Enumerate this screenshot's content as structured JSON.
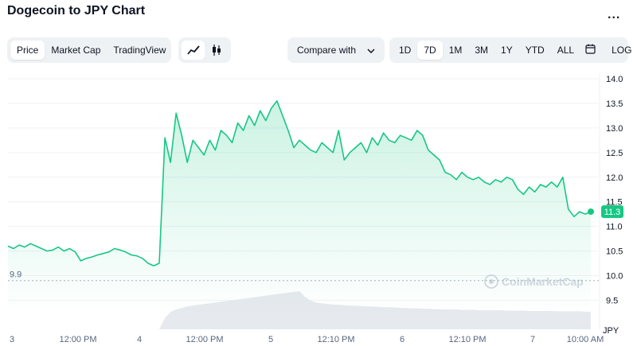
{
  "header": {
    "title": "Dogecoin to JPY Chart",
    "more_label": "..."
  },
  "tabs": [
    {
      "label": "Price",
      "active": true
    },
    {
      "label": "Market Cap",
      "active": false
    },
    {
      "label": "TradingView",
      "active": false
    }
  ],
  "chart_toggles": [
    {
      "icon": "line-chart-icon",
      "active": true
    },
    {
      "icon": "candlestick-icon",
      "active": false
    }
  ],
  "compare": {
    "label": "Compare with",
    "icon": "chevron-down-icon"
  },
  "ranges": [
    {
      "label": "1D",
      "active": false
    },
    {
      "label": "7D",
      "active": true
    },
    {
      "label": "1M",
      "active": false
    },
    {
      "label": "3M",
      "active": false
    },
    {
      "label": "1Y",
      "active": false
    },
    {
      "label": "YTD",
      "active": false
    },
    {
      "label": "ALL",
      "active": false
    }
  ],
  "calendar_icon": "calendar-icon",
  "log_label": "LOG",
  "watermark": "CoinMarketCap",
  "colors": {
    "line": "#16c784",
    "badge": "#16c784",
    "grid": "#eff2f5"
  },
  "chart_data": {
    "type": "area",
    "currency_label": "JPY",
    "ylim": [
      9.2,
      14.0
    ],
    "yticks": [
      9.5,
      10.0,
      10.5,
      11.0,
      11.5,
      12.0,
      12.5,
      13.0,
      13.5,
      14.0
    ],
    "xticks": [
      "3",
      "12:00 PM",
      "4",
      "12:00 PM",
      "5",
      "12:10 PM",
      "6",
      "12:10 PM",
      "7",
      "10:00 AM"
    ],
    "open_price_label": "9.9",
    "open_price": 9.9,
    "current_price_label": "11.3",
    "current_price": 11.3,
    "price": [
      10.6,
      10.55,
      10.62,
      10.58,
      10.65,
      10.6,
      10.55,
      10.5,
      10.52,
      10.58,
      10.5,
      10.55,
      10.48,
      10.3,
      10.35,
      10.38,
      10.42,
      10.45,
      10.48,
      10.55,
      10.52,
      10.48,
      10.42,
      10.4,
      10.35,
      10.25,
      10.2,
      10.25,
      12.8,
      12.3,
      13.3,
      12.85,
      12.3,
      12.75,
      12.6,
      12.45,
      12.75,
      12.55,
      12.95,
      12.85,
      12.7,
      13.1,
      12.95,
      13.25,
      13.05,
      13.35,
      13.15,
      13.4,
      13.55,
      13.25,
      12.95,
      12.6,
      12.75,
      12.65,
      12.55,
      12.5,
      12.7,
      12.6,
      12.5,
      12.95,
      12.35,
      12.5,
      12.6,
      12.7,
      12.5,
      12.8,
      12.65,
      12.9,
      12.75,
      12.7,
      12.85,
      12.8,
      12.75,
      12.95,
      12.85,
      12.55,
      12.45,
      12.35,
      12.1,
      12.05,
      11.95,
      12.1,
      12.0,
      11.95,
      12.0,
      11.9,
      11.85,
      11.95,
      11.9,
      12.0,
      11.95,
      11.75,
      11.65,
      11.8,
      11.7,
      11.85,
      11.8,
      11.9,
      11.8,
      12.0,
      11.35,
      11.2,
      11.3,
      11.25,
      11.3
    ],
    "volume": [
      0,
      0,
      0,
      0,
      0,
      0,
      0,
      0,
      0,
      0,
      0,
      0,
      0,
      0,
      0,
      0,
      0,
      0,
      0,
      0,
      0,
      0,
      0,
      0,
      0,
      0,
      0,
      0,
      0.3,
      0.45,
      0.52,
      0.56,
      0.6,
      0.62,
      0.64,
      0.66,
      0.68,
      0.7,
      0.72,
      0.74,
      0.76,
      0.78,
      0.8,
      0.82,
      0.84,
      0.86,
      0.88,
      0.9,
      0.92,
      0.94,
      0.96,
      0.98,
      1.0,
      0.85,
      0.75,
      0.7,
      0.68,
      0.66,
      0.65,
      0.64,
      0.63,
      0.62,
      0.62,
      0.61,
      0.6,
      0.6,
      0.59,
      0.58,
      0.58,
      0.57,
      0.56,
      0.56,
      0.55,
      0.55,
      0.54,
      0.54,
      0.53,
      0.53,
      0.52,
      0.52,
      0.52,
      0.51,
      0.51,
      0.51,
      0.5,
      0.5,
      0.5,
      0.5,
      0.5,
      0.49,
      0.49,
      0.49,
      0.49,
      0.48,
      0.48,
      0.48,
      0.48,
      0.48,
      0.47,
      0.47,
      0.47,
      0.47,
      0.47,
      0.46,
      0.46
    ]
  }
}
